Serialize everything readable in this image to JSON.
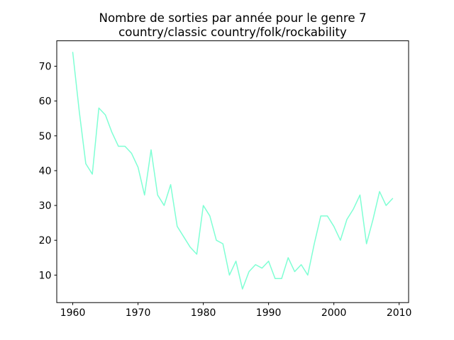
{
  "figure": {
    "background": "#ffffff",
    "title_line1": "Nombre de sorties par année pour le genre 7",
    "title_line2": "country/classic country/folk/rockability"
  },
  "chart_data": {
    "type": "line",
    "title": "Nombre de sorties par année pour le genre 7\ncountry/classic country/folk/rockability",
    "xlabel": "",
    "ylabel": "",
    "grid": false,
    "legend": null,
    "line_color": "#7fffd4",
    "line_width": 1.5,
    "spine_color": "#000000",
    "xlim": [
      1957.55,
      2011.45
    ],
    "ylim": [
      2.1,
      77.3
    ],
    "x_ticks": [
      1960,
      1970,
      1980,
      1990,
      2000,
      2010
    ],
    "x_tick_labels": [
      "1960",
      "1970",
      "1980",
      "1990",
      "2000",
      "2010"
    ],
    "y_ticks": [
      10,
      20,
      30,
      40,
      50,
      60,
      70
    ],
    "y_tick_labels": [
      "10",
      "20",
      "30",
      "40",
      "50",
      "60",
      "70"
    ],
    "x": [
      1960,
      1961,
      1962,
      1963,
      1964,
      1965,
      1966,
      1967,
      1968,
      1969,
      1970,
      1971,
      1972,
      1973,
      1974,
      1975,
      1976,
      1977,
      1978,
      1979,
      1980,
      1981,
      1982,
      1983,
      1984,
      1985,
      1986,
      1987,
      1988,
      1989,
      1990,
      1991,
      1992,
      1993,
      1994,
      1995,
      1996,
      1997,
      1998,
      1999,
      2000,
      2001,
      2002,
      2003,
      2004,
      2005,
      2006,
      2007,
      2008,
      2009
    ],
    "values": [
      74,
      57,
      42,
      39,
      58,
      56,
      51,
      47,
      47,
      45,
      41,
      33,
      46,
      33,
      30,
      36,
      24,
      21,
      18,
      16,
      30,
      27,
      20,
      19,
      10,
      14,
      6,
      11,
      13,
      12,
      14,
      9,
      9,
      15,
      11,
      13,
      10,
      19,
      27,
      27,
      24,
      20,
      26,
      29,
      33,
      19,
      26,
      34,
      30,
      32
    ]
  }
}
